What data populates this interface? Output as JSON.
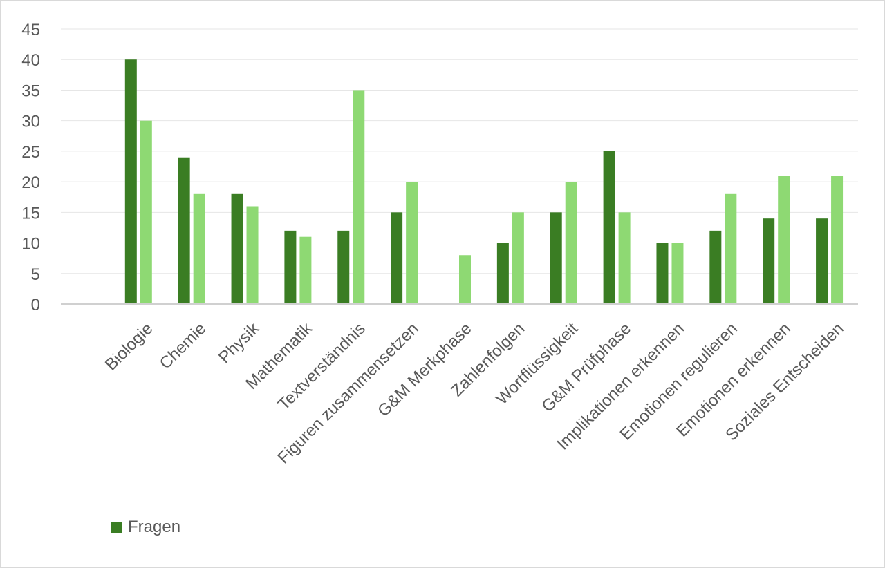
{
  "chart_data": {
    "type": "bar",
    "categories": [
      "Biologie",
      "Chemie",
      "Physik",
      "Mathematik",
      "Textverständnis",
      "Figuren zusammensetzen",
      "G&M Merkphase",
      "Zahlenfolgen",
      "Wortflüssigkeit",
      "G&M Prüfphase",
      "Implikationen erkennen",
      "Emotionen regulieren",
      "Emotionen erkennen",
      "Soziales Entscheiden"
    ],
    "series": [
      {
        "name": "Fragen",
        "color": "#3a7d23",
        "values": [
          40,
          24,
          18,
          12,
          12,
          15,
          0,
          10,
          15,
          25,
          10,
          12,
          14,
          14
        ]
      },
      {
        "color": "#8ed973",
        "values": [
          30,
          18,
          16,
          11,
          35,
          20,
          8,
          15,
          20,
          15,
          10,
          18,
          21,
          21
        ]
      }
    ],
    "ylim": [
      0,
      45
    ],
    "yticks": [
      "0",
      "5",
      "10",
      "15",
      "20",
      "25",
      "30",
      "35",
      "40",
      "45"
    ],
    "grid": true,
    "legend_position": "bottom-left",
    "title": "",
    "xlabel": "",
    "ylabel": ""
  },
  "legend": {
    "label": "Fragen",
    "color": "#3a7d23"
  }
}
